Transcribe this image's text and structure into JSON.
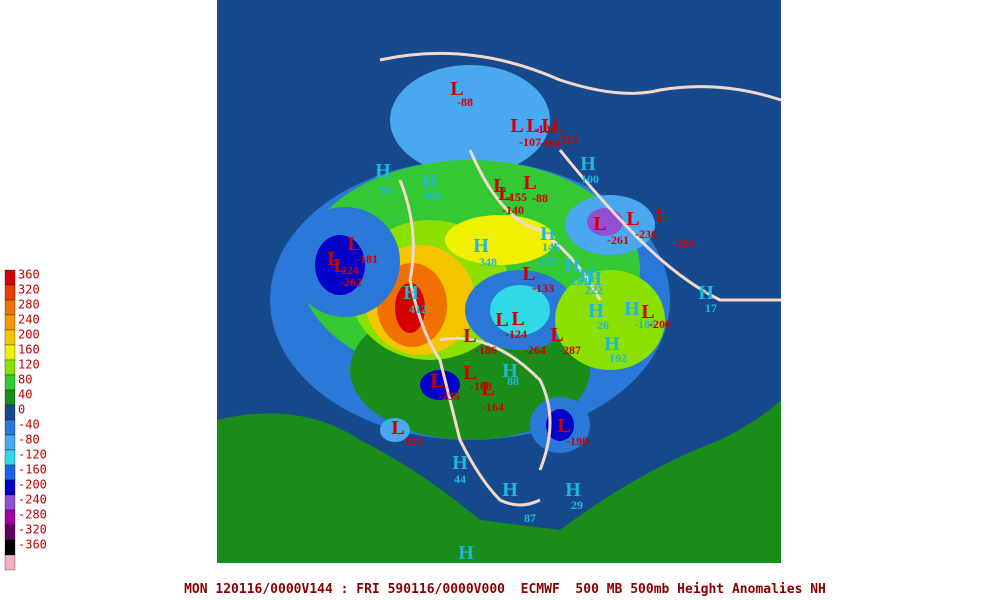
{
  "title": "MON 120116/0000V144 : FRI 590116/0000V000  ECMWF  500 MB 500mb Height Anomalies NH",
  "legend": {
    "labels": [
      360,
      320,
      280,
      240,
      200,
      160,
      120,
      80,
      40,
      0,
      -40,
      -80,
      -120,
      -160,
      -200,
      -240,
      -280,
      -320,
      -360
    ],
    "colors": [
      "#d40000",
      "#ec3c00",
      "#f07000",
      "#f49a00",
      "#f4c400",
      "#f0f000",
      "#8ce000",
      "#34c834",
      "#1a8c1a",
      "#174a8c",
      "#2a78d8",
      "#4aa8f0",
      "#30d8e8",
      "#2060f0",
      "#0000c8",
      "#9050d0",
      "#a000a0",
      "#600060",
      "#000000",
      "#f4b0c0"
    ]
  },
  "markers": [
    {
      "symbol": "L",
      "value": -88
    },
    {
      "symbol": "L",
      "value": -107
    },
    {
      "symbol": "L",
      "value": -101
    },
    {
      "symbol": "L",
      "value": -104
    },
    {
      "symbol": "L",
      "value": -113
    },
    {
      "symbol": "H",
      "value": 86
    },
    {
      "symbol": "H",
      "value": 100
    },
    {
      "symbol": "H",
      "value": 100
    },
    {
      "symbol": "L",
      "value": -155
    },
    {
      "symbol": "L",
      "value": -88
    },
    {
      "symbol": "L",
      "value": -140
    },
    {
      "symbol": "H",
      "value": 145
    },
    {
      "symbol": "H",
      "value": 348
    },
    {
      "symbol": "L",
      "value": -181
    },
    {
      "symbol": "L",
      "value": -224
    },
    {
      "symbol": "L",
      "value": -262
    },
    {
      "symbol": "L",
      "value": -261
    },
    {
      "symbol": "L",
      "value": -236
    },
    {
      "symbol": "L",
      "value": -194
    },
    {
      "symbol": "H",
      "value": 239
    },
    {
      "symbol": "H",
      "value": 281
    },
    {
      "symbol": "H",
      "value": 222
    },
    {
      "symbol": "L",
      "value": -133
    },
    {
      "symbol": "H",
      "value": 412
    },
    {
      "symbol": "L",
      "value": -124
    },
    {
      "symbol": "L",
      "value": -186
    },
    {
      "symbol": "L",
      "value": -264
    },
    {
      "symbol": "L",
      "value": -287
    },
    {
      "symbol": "H",
      "value": 26
    },
    {
      "symbol": "H",
      "value": 192
    },
    {
      "symbol": "H",
      "value": -185
    },
    {
      "symbol": "L",
      "value": -206
    },
    {
      "symbol": "H",
      "value": 17
    },
    {
      "symbol": "L",
      "value": -235
    },
    {
      "symbol": "L",
      "value": -168
    },
    {
      "symbol": "L",
      "value": -164
    },
    {
      "symbol": "L",
      "value": -123
    },
    {
      "symbol": "L",
      "value": -190
    },
    {
      "symbol": "H",
      "value": 88
    },
    {
      "symbol": "H",
      "value": 44
    },
    {
      "symbol": "H",
      "value": 87
    },
    {
      "symbol": "H",
      "value": 29
    },
    {
      "symbol": "H"
    }
  ]
}
